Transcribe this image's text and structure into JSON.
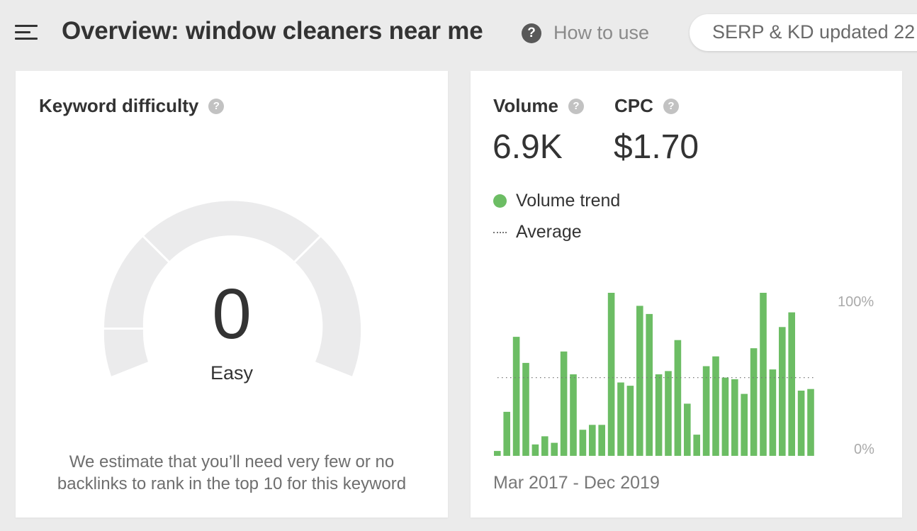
{
  "header": {
    "title": "Overview: window cleaners near me",
    "help_icon_glyph": "?",
    "help_text": "How to use",
    "serp_status": "SERP & KD updated 22"
  },
  "kd_card": {
    "title": "Keyword difficulty",
    "help_glyph": "?",
    "score": "0",
    "level": "Easy",
    "description": "We estimate that you’ll need very few or no backlinks to rank in the top 10 for this keyword"
  },
  "volume_card": {
    "volume_label": "Volume",
    "volume_value": "6.9K",
    "cpc_label": "CPC",
    "cpc_value": "$1.70",
    "help_glyph": "?",
    "legend_trend": "Volume trend",
    "legend_average": "Average",
    "date_range": "Mar 2017 - Dec 2019",
    "axis_max_label": "100%",
    "axis_min_label": "0%"
  },
  "chart_data": {
    "type": "bar",
    "series": [
      {
        "name": "Volume trend",
        "values": [
          3,
          27,
          73,
          57,
          7,
          12,
          8,
          64,
          50,
          16,
          19,
          19,
          100,
          45,
          43,
          92,
          87,
          50,
          52,
          71,
          32,
          13,
          55,
          61,
          48,
          47,
          38,
          66,
          100,
          53,
          79,
          88,
          40,
          41
        ]
      }
    ],
    "average": 48,
    "ylim": [
      0,
      100
    ],
    "ytick_labels": [
      "0%",
      "100%"
    ],
    "date_range": "Mar 2017 - Dec 2019",
    "legend": [
      "Volume trend",
      "Average"
    ]
  },
  "colors": {
    "accent_green": "#6cbd64",
    "gauge_gray": "#ebebec",
    "background": "#ebebeb"
  },
  "icons": [
    "menu-icon",
    "help-icon",
    "question-icon"
  ]
}
